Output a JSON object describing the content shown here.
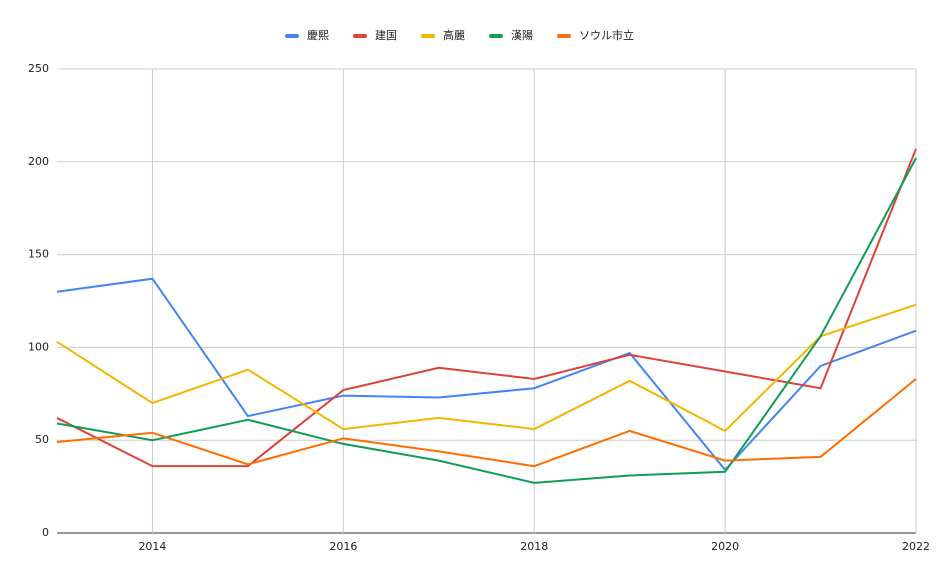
{
  "chart_data": {
    "type": "line",
    "x": [
      2013,
      2014,
      2015,
      2016,
      2017,
      2018,
      2019,
      2020,
      2021,
      2022
    ],
    "series": [
      {
        "name": "慶熙",
        "color": "#4285f4",
        "values": [
          130,
          137,
          63,
          74,
          73,
          78,
          97,
          34,
          90,
          109
        ]
      },
      {
        "name": "建国",
        "color": "#db4437",
        "values": [
          62,
          36,
          36,
          77,
          89,
          83,
          96,
          87,
          78,
          207
        ]
      },
      {
        "name": "高麗",
        "color": "#f4b400",
        "values": [
          103,
          70,
          88,
          56,
          62,
          56,
          82,
          55,
          106,
          123
        ]
      },
      {
        "name": "漢陽",
        "color": "#0f9d58",
        "values": [
          59,
          50,
          61,
          48,
          39,
          27,
          31,
          33,
          106,
          202
        ]
      },
      {
        "name": "ソウル市立",
        "color": "#ff6d01",
        "values": [
          49,
          54,
          37,
          51,
          44,
          36,
          55,
          39,
          41,
          83
        ]
      }
    ],
    "xlim": [
      2013,
      2022
    ],
    "xticks": [
      2014,
      2016,
      2018,
      2020,
      2022
    ],
    "ylim": [
      0,
      250
    ],
    "yticks": [
      0,
      50,
      100,
      150,
      200,
      250
    ],
    "grid": true,
    "legend": "top"
  }
}
